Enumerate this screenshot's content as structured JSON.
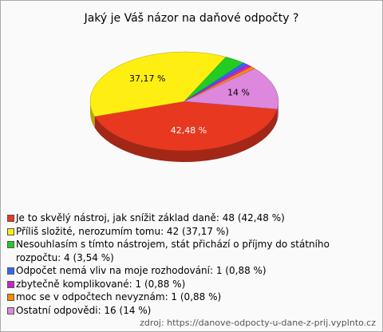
{
  "chart_data": {
    "type": "pie3d",
    "title": "Jaký je Váš názor na daňové odpočty ?",
    "categories": [
      "Je to skvělý nástroj, jak snížit základ daně: 48 (42,48 %)",
      "Příliš složité, nerozumím tomu: 42 (37,17 %)",
      "Nesouhlasím s tímto nástrojem, stát přichází o příjmy do státního rozpočtu: 4 (3,54 %)",
      "Odpočet nemá vliv na moje rozhodování: 1 (0,88 %)",
      "zbytečně komplikované: 1 (0,88 %)",
      "moc se v odpočtech nevyznám: 1 (0,88 %)",
      "Ostatní odpovědi: 16 (14 %)"
    ],
    "values": [
      42.48,
      37.17,
      3.54,
      0.88,
      0.88,
      0.88,
      14
    ],
    "value_labels": [
      "42,48 %",
      "37,17 %",
      null,
      null,
      null,
      null,
      "14 %"
    ],
    "colors": [
      "#e83820",
      "#ffee11",
      "#22cc22",
      "#3366ff",
      "#cc22cc",
      "#ff8800",
      "#dd88dd"
    ],
    "source": "zdroj: https://danove-odpocty-u-dane-z-prij.vyplnto.cz"
  }
}
